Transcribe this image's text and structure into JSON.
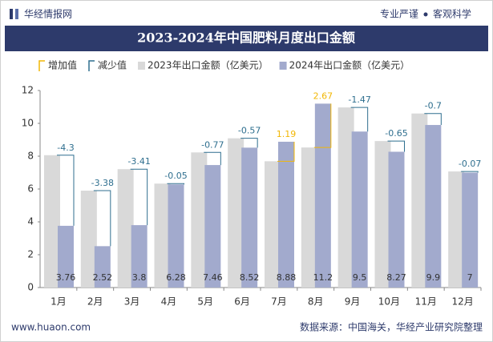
{
  "header": {
    "brand": "华经情报网",
    "slogan_left": "专业严谨",
    "slogan_right": "客观科学"
  },
  "footer": {
    "website": "www.huaon.com",
    "source": "数据来源：中国海关，华经产业研究院整理"
  },
  "chart_data": {
    "type": "bar",
    "title": "2023-2024年中国肥料月度出口金额",
    "categories": [
      "1月",
      "2月",
      "3月",
      "4月",
      "5月",
      "6月",
      "7月",
      "8月",
      "9月",
      "10月",
      "11月",
      "12月"
    ],
    "series": [
      {
        "name": "2023年出口金额（亿美元）",
        "color": "#d9d9d9",
        "values": [
          8.06,
          5.9,
          7.21,
          6.33,
          8.23,
          9.09,
          7.69,
          8.53,
          10.97,
          8.92,
          10.6,
          7.07
        ]
      },
      {
        "name": "2024年出口金额（亿美元）",
        "color": "#a2aacd",
        "values": [
          3.76,
          2.52,
          3.8,
          6.28,
          7.46,
          8.52,
          8.88,
          11.2,
          9.5,
          8.27,
          9.9,
          7
        ]
      }
    ],
    "changes": {
      "increase": {
        "name": "增加值",
        "color": "#f2b705"
      },
      "decrease": {
        "name": "减少值",
        "color": "#2f6f8f"
      },
      "values": [
        -4.3,
        -3.38,
        -3.41,
        -0.05,
        -0.77,
        -0.57,
        1.19,
        2.67,
        -1.47,
        -0.65,
        -0.7,
        -0.07
      ]
    },
    "ylim": [
      0,
      12
    ],
    "yticks": [
      0,
      2,
      4,
      6,
      8,
      10,
      12
    ]
  }
}
